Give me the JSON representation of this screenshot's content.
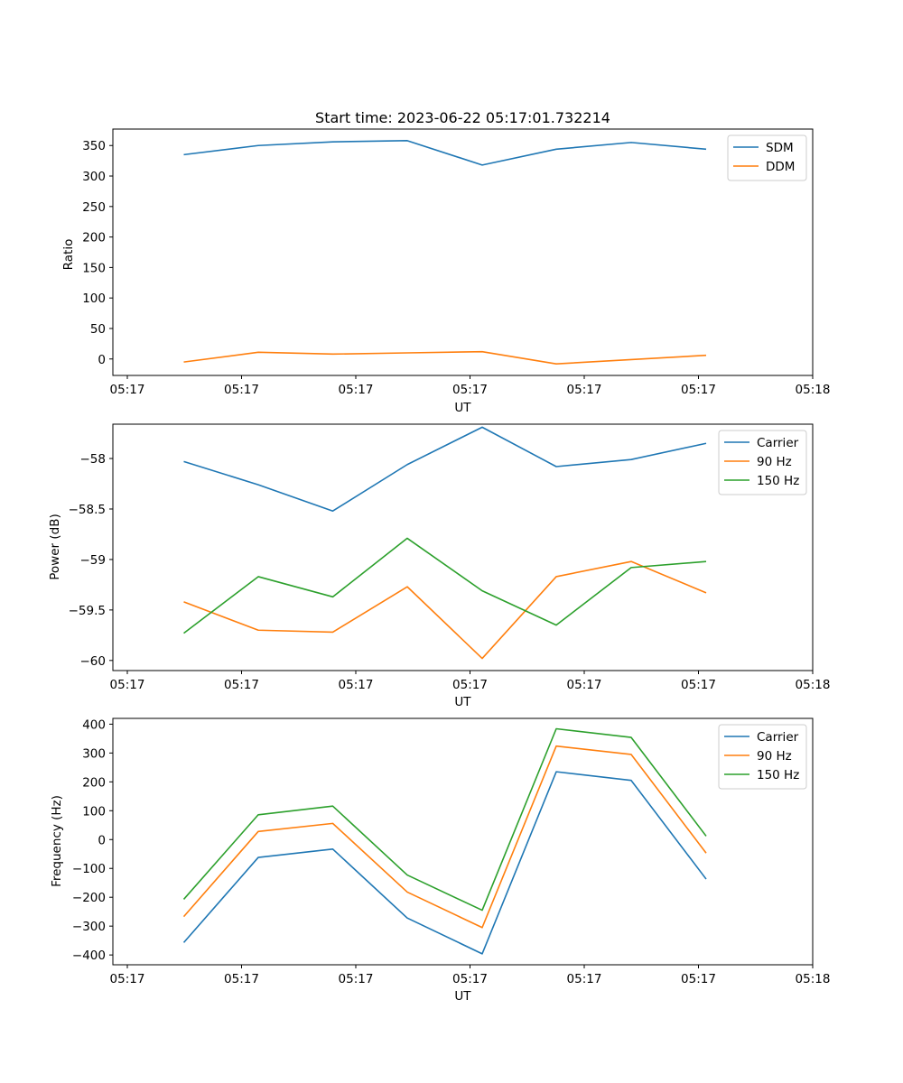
{
  "title": "Start time: 2023-06-22 05:17:01.732214",
  "colors": {
    "blue": "#1f77b4",
    "orange": "#ff7f0e",
    "green": "#2ca02c"
  },
  "chart_data": [
    {
      "type": "line",
      "title": "Start time: 2023-06-22 05:17:01.732214",
      "xlabel": "UT",
      "ylabel": "Ratio",
      "x_tick_labels": [
        "05:17",
        "05:17",
        "05:17",
        "05:17",
        "05:17",
        "05:17",
        "05:18"
      ],
      "grid": false,
      "legend_position": "top-right",
      "ylim": [
        -27,
        377
      ],
      "yticks": [
        0,
        50,
        100,
        150,
        200,
        250,
        300,
        350
      ],
      "series": [
        {
          "name": "SDM",
          "color": "#1f77b4",
          "values": [
            335,
            350,
            356,
            358,
            318,
            344,
            355,
            344
          ]
        },
        {
          "name": "DDM",
          "color": "#ff7f0e",
          "values": [
            -5,
            11,
            8,
            10,
            12,
            -8,
            -1,
            6
          ]
        }
      ]
    },
    {
      "type": "line",
      "title": "",
      "xlabel": "UT",
      "ylabel": "Power (dB)",
      "x_tick_labels": [
        "05:17",
        "05:17",
        "05:17",
        "05:17",
        "05:17",
        "05:17",
        "05:18"
      ],
      "grid": false,
      "legend_position": "top-right",
      "ylim": [
        -60.1,
        -57.66
      ],
      "yticks": [
        -60.0,
        -59.5,
        -59.0,
        -58.5,
        -58.0
      ],
      "series": [
        {
          "name": "Carrier",
          "color": "#1f77b4",
          "values": [
            -58.03,
            -58.26,
            -58.52,
            -58.06,
            -57.69,
            -58.08,
            -58.01,
            -57.85
          ]
        },
        {
          "name": "90 Hz",
          "color": "#ff7f0e",
          "values": [
            -59.42,
            -59.7,
            -59.72,
            -59.27,
            -59.98,
            -59.17,
            -59.02,
            -59.33
          ]
        },
        {
          "name": "150 Hz",
          "color": "#2ca02c",
          "values": [
            -59.73,
            -59.17,
            -59.37,
            -58.79,
            -59.31,
            -59.65,
            -59.08,
            -59.02
          ]
        }
      ]
    },
    {
      "type": "line",
      "title": "",
      "xlabel": "UT",
      "ylabel": "Frequency (Hz)",
      "x_tick_labels": [
        "05:17",
        "05:17",
        "05:17",
        "05:17",
        "05:17",
        "05:17",
        "05:18"
      ],
      "grid": false,
      "legend_position": "top-right",
      "ylim": [
        -434,
        420
      ],
      "yticks": [
        -400,
        -300,
        -200,
        -100,
        0,
        100,
        200,
        300,
        400
      ],
      "series": [
        {
          "name": "Carrier",
          "color": "#1f77b4",
          "values": [
            -357,
            -62,
            -33,
            -272,
            -396,
            235,
            205,
            -137
          ]
        },
        {
          "name": "90 Hz",
          "color": "#ff7f0e",
          "values": [
            -267,
            28,
            56,
            -182,
            -305,
            324,
            295,
            -47
          ]
        },
        {
          "name": "150 Hz",
          "color": "#2ca02c",
          "values": [
            -207,
            86,
            116,
            -123,
            -245,
            384,
            354,
            12
          ]
        }
      ]
    }
  ]
}
